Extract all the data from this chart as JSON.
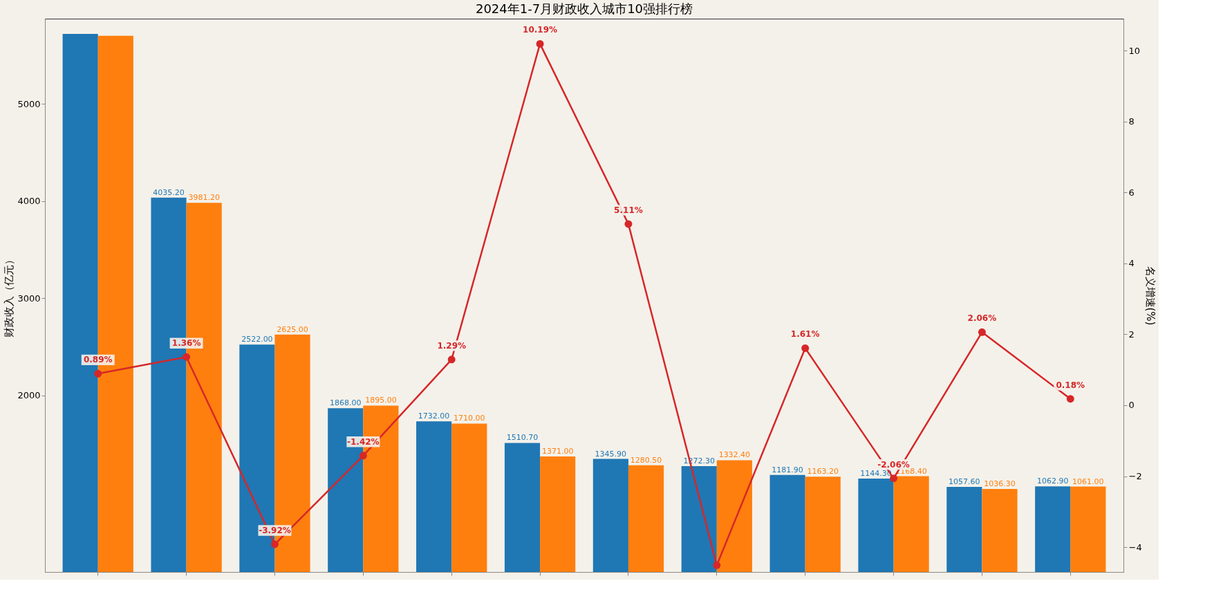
{
  "chart_data": {
    "type": "bar",
    "title": "2024年1-7月财政收入城市10强排行榜",
    "ylabel": "财政收入（亿元）",
    "y2label": "名义增速(%)",
    "categories": [
      null,
      null,
      null,
      null,
      null,
      null,
      null,
      null,
      null,
      null,
      null,
      null
    ],
    "series": [
      {
        "type": "bar",
        "color": "#1f77b4",
        "values": [
          5720,
          4035.2,
          2522.0,
          1868.0,
          1732.0,
          1510.7,
          1345.9,
          1272.3,
          1181.9,
          1144.3,
          1057.6,
          1062.9
        ],
        "value_labels": [
          null,
          "4035.20",
          "2522.00",
          "1868.00",
          "1732.00",
          "1510.70",
          "1345.90",
          "1272.30",
          "1181.90",
          "1144.30",
          "1057.60",
          "1062.90"
        ]
      },
      {
        "type": "bar",
        "color": "#ff7f0e",
        "values": [
          5700,
          3981.2,
          2625.0,
          1895.0,
          1710.0,
          1371.0,
          1280.5,
          1332.4,
          1163.2,
          1168.4,
          1036.3,
          1061.0
        ],
        "value_labels": [
          null,
          "3981.20",
          "2625.00",
          "1895.00",
          "1710.00",
          "1371.00",
          "1280.50",
          "1332.40",
          "1163.20",
          "1168.40",
          "1036.30",
          "1061.00"
        ]
      },
      {
        "type": "line",
        "axis": "y2",
        "color": "#d62728",
        "marker": "circle",
        "line_style": "solid",
        "values": [
          0.89,
          1.36,
          -3.92,
          -1.42,
          1.29,
          10.19,
          5.11,
          -4.51,
          1.61,
          -2.06,
          2.06,
          0.18
        ],
        "value_labels": [
          "0.89%",
          "1.36%",
          "-3.92%",
          "-1.42%",
          "1.29%",
          "10.19%",
          "5.11%",
          null,
          "1.61%",
          "-2.06%",
          "2.06%",
          "0.18%"
        ]
      }
    ],
    "ylim": [
      183,
      5876
    ],
    "yticks": [
      2000,
      3000,
      4000,
      5000
    ],
    "y2lim": [
      -4.7,
      10.9
    ],
    "y2ticks": [
      -4,
      -2,
      0,
      2,
      4,
      6,
      8,
      10
    ],
    "tick_labels": "y",
    "grid": false,
    "legend": false
  }
}
